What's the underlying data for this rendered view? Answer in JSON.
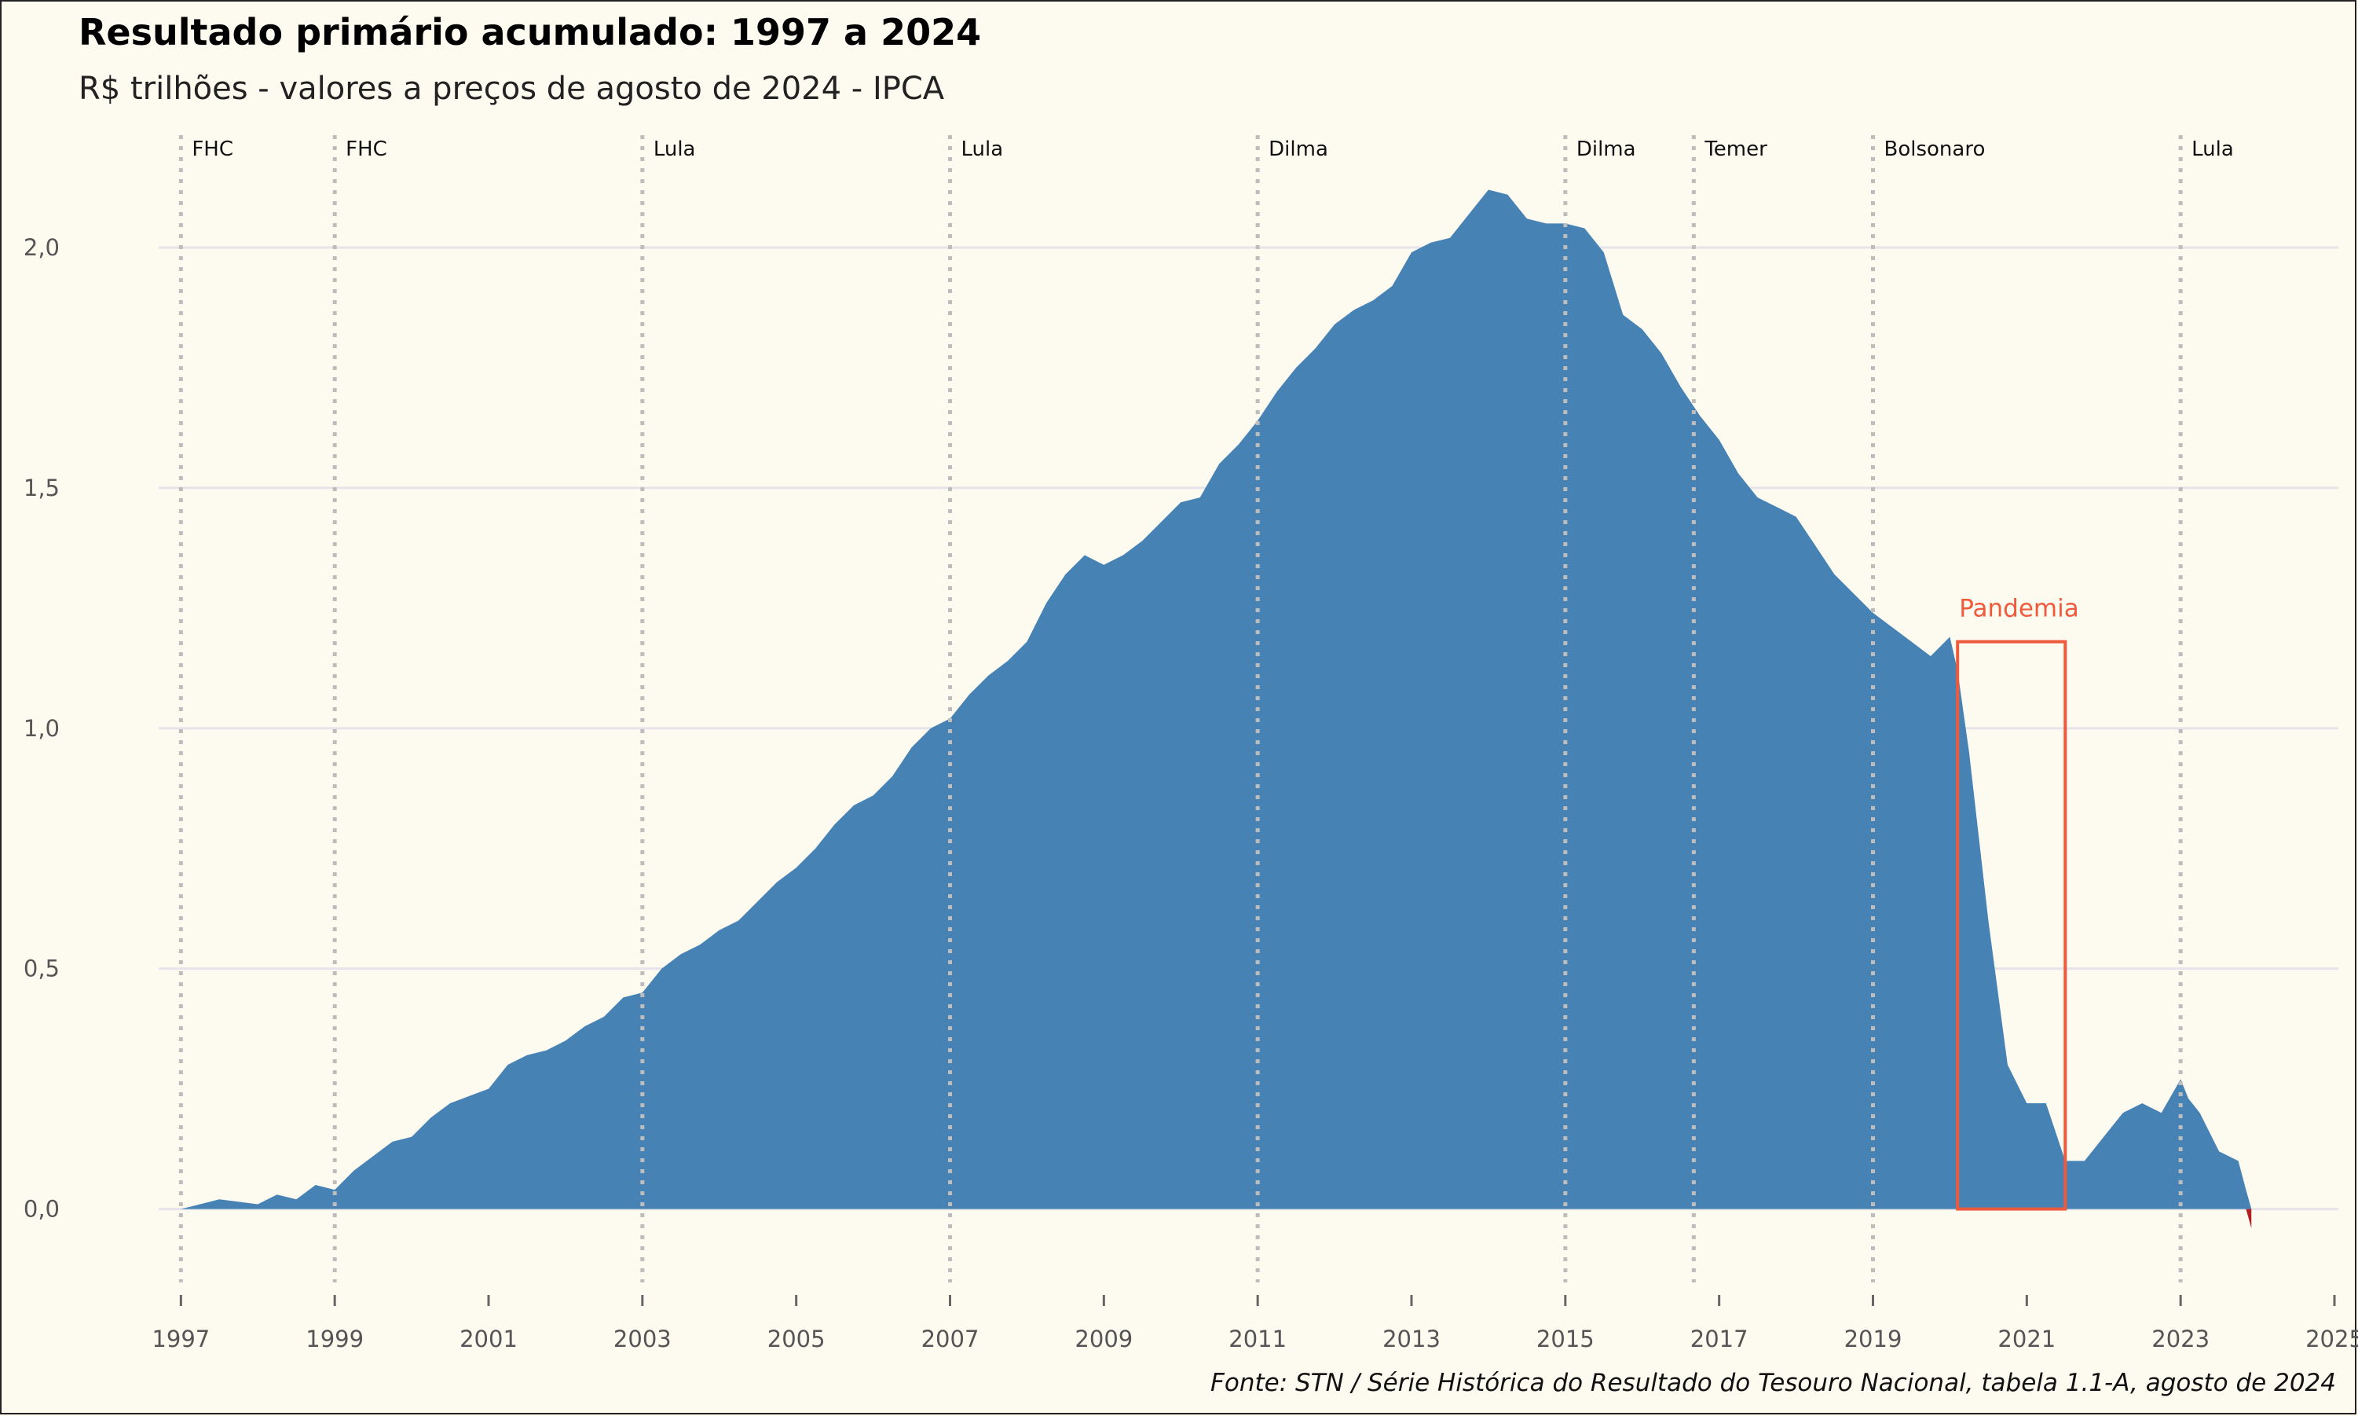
{
  "title": "Resultado primário acumulado: 1997 a 2024",
  "subtitle": "R$ trilhões - valores a preços de agosto de 2024 - IPCA",
  "caption": "Fonte: STN / Série Histórica do Resultado do Tesouro Nacional, tabela 1.1-A, agosto de 2024",
  "colors": {
    "background": "#fdfaf0",
    "area_positive": "#4682b4",
    "area_negative": "#b22222",
    "annotation": "#f05a3c",
    "gridline": "#e6e4ea",
    "government_line": "#bdbdbd"
  },
  "chart_data": {
    "type": "area",
    "title": "Resultado primário acumulado: 1997 a 2024",
    "subtitle": "R$ trilhões - valores a preços de agosto de 2024 - IPCA",
    "xlabel": "",
    "ylabel": "",
    "xlim": [
      1996.2,
      2025.0
    ],
    "ylim": [
      -0.12,
      2.25
    ],
    "x_ticks": [
      1997,
      1999,
      2001,
      2003,
      2005,
      2007,
      2009,
      2011,
      2013,
      2015,
      2017,
      2019,
      2021,
      2023,
      2025
    ],
    "y_ticks": [
      0.0,
      0.5,
      1.0,
      1.5,
      2.0
    ],
    "y_tick_labels": [
      "0,0",
      "0,5",
      "1,0",
      "1,5",
      "2,0"
    ],
    "grid": "horizontal",
    "series": [
      {
        "x": [
          1997.0,
          1997.25,
          1997.5,
          1997.75,
          1998.0,
          1998.25,
          1998.5,
          1998.75,
          1999.0,
          1999.25,
          1999.5,
          1999.75,
          2000.0,
          2000.25,
          2000.5,
          2000.75,
          2001.0,
          2001.25,
          2001.5,
          2001.75,
          2002.0,
          2002.25,
          2002.5,
          2002.75,
          2003.0,
          2003.25,
          2003.5,
          2003.75,
          2004.0,
          2004.25,
          2004.5,
          2004.75,
          2005.0,
          2005.25,
          2005.5,
          2005.75,
          2006.0,
          2006.25,
          2006.5,
          2006.75,
          2007.0,
          2007.25,
          2007.5,
          2007.75,
          2008.0,
          2008.25,
          2008.5,
          2008.75,
          2009.0,
          2009.25,
          2009.5,
          2009.75,
          2010.0,
          2010.25,
          2010.5,
          2010.75,
          2011.0,
          2011.25,
          2011.5,
          2011.75,
          2012.0,
          2012.25,
          2012.5,
          2012.75,
          2013.0,
          2013.25,
          2013.5,
          2013.75,
          2014.0,
          2014.25,
          2014.5,
          2014.75,
          2015.0,
          2015.25,
          2015.5,
          2015.75,
          2016.0,
          2016.25,
          2016.5,
          2016.75,
          2017.0,
          2017.25,
          2017.5,
          2017.75,
          2018.0,
          2018.25,
          2018.5,
          2018.75,
          2019.0,
          2019.25,
          2019.5,
          2019.75,
          2020.0,
          2020.1,
          2020.25,
          2020.5,
          2020.75,
          2021.0,
          2021.25,
          2021.5,
          2021.75,
          2022.0,
          2022.25,
          2022.5,
          2022.75,
          2023.0,
          2023.1,
          2023.25,
          2023.5,
          2023.75,
          2023.85,
          2023.92
        ],
        "y": [
          0.0,
          0.01,
          0.02,
          0.015,
          0.01,
          0.03,
          0.02,
          0.05,
          0.04,
          0.08,
          0.11,
          0.14,
          0.15,
          0.19,
          0.22,
          0.235,
          0.25,
          0.3,
          0.32,
          0.33,
          0.35,
          0.38,
          0.4,
          0.44,
          0.45,
          0.5,
          0.53,
          0.55,
          0.58,
          0.6,
          0.64,
          0.68,
          0.71,
          0.75,
          0.8,
          0.84,
          0.86,
          0.9,
          0.96,
          1.0,
          1.02,
          1.07,
          1.11,
          1.14,
          1.18,
          1.26,
          1.32,
          1.36,
          1.34,
          1.36,
          1.39,
          1.43,
          1.47,
          1.48,
          1.55,
          1.59,
          1.64,
          1.7,
          1.75,
          1.79,
          1.84,
          1.87,
          1.89,
          1.92,
          1.99,
          2.01,
          2.02,
          2.07,
          2.12,
          2.11,
          2.06,
          2.05,
          2.05,
          2.04,
          1.99,
          1.86,
          1.83,
          1.78,
          1.71,
          1.65,
          1.6,
          1.53,
          1.48,
          1.46,
          1.44,
          1.38,
          1.32,
          1.28,
          1.24,
          1.21,
          1.18,
          1.15,
          1.19,
          1.12,
          0.95,
          0.6,
          0.3,
          0.22,
          0.22,
          0.1,
          0.1,
          0.15,
          0.2,
          0.22,
          0.2,
          0.27,
          0.23,
          0.2,
          0.12,
          0.1,
          0.04,
          -0.04
        ]
      }
    ],
    "governments": [
      {
        "x": 1997.0,
        "label": "FHC"
      },
      {
        "x": 1999.0,
        "label": "FHC"
      },
      {
        "x": 2003.0,
        "label": "Lula"
      },
      {
        "x": 2007.0,
        "label": "Lula"
      },
      {
        "x": 2011.0,
        "label": "Dilma"
      },
      {
        "x": 2015.0,
        "label": "Dilma"
      },
      {
        "x": 2016.67,
        "label": "Temer"
      },
      {
        "x": 2019.0,
        "label": "Bolsonaro"
      },
      {
        "x": 2023.0,
        "label": "Lula"
      }
    ],
    "annotation": {
      "label": "Pandemia",
      "x_range": [
        2020.1,
        2021.5
      ],
      "y_range": [
        0.0,
        1.18
      ]
    }
  }
}
